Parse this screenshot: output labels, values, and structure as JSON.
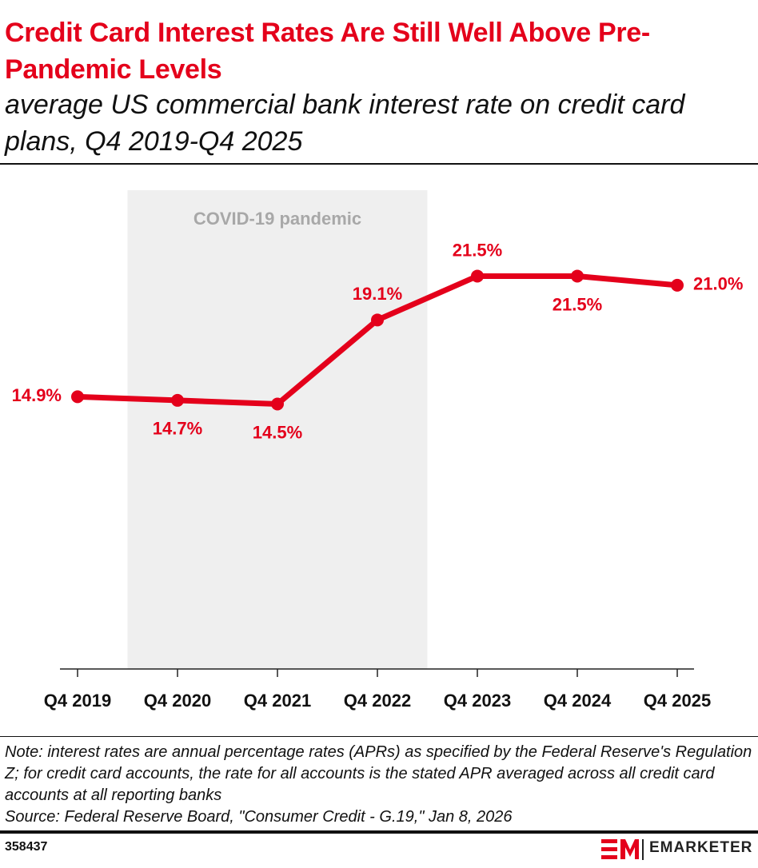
{
  "title": "Credit Card Interest Rates Are Still Well Above Pre-Pandemic Levels",
  "subtitle": "average US commercial bank interest rate on credit card plans, Q4 2019-Q4 2025",
  "chart_data": {
    "type": "line",
    "categories": [
      "Q4 2019",
      "Q4 2020",
      "Q4 2021",
      "Q4 2022",
      "Q4 2023",
      "Q4 2024",
      "Q4 2025"
    ],
    "values": [
      14.9,
      14.7,
      14.5,
      19.1,
      21.5,
      21.5,
      21.0
    ],
    "value_labels": [
      "14.9%",
      "14.7%",
      "14.5%",
      "19.1%",
      "21.5%",
      "21.5%",
      "21.0%"
    ],
    "color": "#e4001b",
    "ylim": [
      0,
      26.2
    ],
    "shaded_band": {
      "label": "COVID-19 pandemic",
      "after": "Q4 2019",
      "before": "Q4 2023",
      "color": "#efefef"
    }
  },
  "note": "Note: interest rates are annual percentage rates (APRs) as specified by the Federal Reserve's Regulation Z; for credit card accounts, the rate for all accounts is the stated APR averaged across all credit card accounts at all reporting banks",
  "source": "Source: Federal Reserve Board, \"Consumer Credit - G.19,\" Jan 8, 2026",
  "chart_id": "358437",
  "brand": "EMARKETER"
}
